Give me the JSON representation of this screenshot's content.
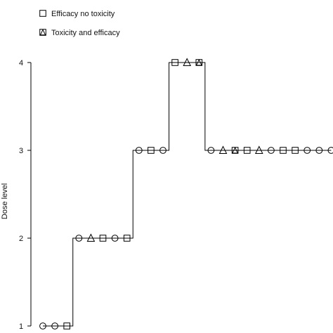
{
  "chart_data": {
    "type": "line",
    "ylabel": "Dose level",
    "xlabel": "",
    "title": "",
    "ylim": [
      1,
      4
    ],
    "yticks": [
      "1",
      "2",
      "3",
      "4"
    ],
    "legend": {
      "placement": "top-left",
      "entries": [
        {
          "label": "Efficacy no toxicity",
          "marker": "square"
        },
        {
          "label": "Toxicity and efficacy",
          "marker": "square-with-triangle"
        }
      ]
    },
    "series": [
      {
        "patients": [
          1,
          2,
          3,
          4,
          5,
          6,
          7,
          8,
          9,
          10,
          11,
          12,
          13,
          14,
          15,
          16,
          17,
          18,
          19,
          20,
          21,
          22,
          23,
          24,
          25
        ],
        "dose": [
          1,
          1,
          1,
          2,
          2,
          2,
          2,
          2,
          3,
          3,
          3,
          4,
          4,
          4,
          3,
          3,
          3,
          3,
          3,
          3,
          3,
          3,
          3,
          3,
          3
        ],
        "outcome": [
          "none",
          "none",
          "efficacy",
          "none",
          "toxicity",
          "efficacy",
          "none",
          "efficacy",
          "none",
          "efficacy",
          "none",
          "efficacy",
          "toxicity",
          "toxicity-efficacy",
          "none",
          "toxicity",
          "toxicity-efficacy",
          "efficacy",
          "toxicity",
          "none",
          "efficacy",
          "efficacy",
          "none",
          "none",
          "none"
        ]
      }
    ]
  }
}
